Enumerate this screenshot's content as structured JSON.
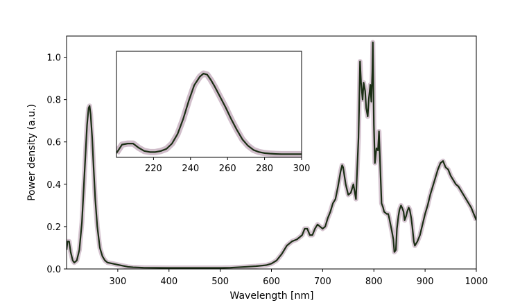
{
  "chart_data": [
    {
      "type": "line",
      "role": "main",
      "xlabel": "Wavelength [nm]",
      "ylabel": "Power density (a.u.)",
      "xlim": [
        200,
        1000
      ],
      "ylim": [
        0,
        1.1
      ],
      "xticks": [
        300,
        400,
        500,
        600,
        700,
        800,
        900,
        1000
      ],
      "yticks": [
        0.0,
        0.2,
        0.4,
        0.6,
        0.8,
        1.0
      ],
      "xtick_labels": [
        "300",
        "400",
        "500",
        "600",
        "700",
        "800",
        "900",
        "1000"
      ],
      "ytick_labels": [
        "0.0",
        "0.2",
        "0.4",
        "0.6",
        "0.8",
        "1.0"
      ],
      "grid": false,
      "line_color": "#1a2e14",
      "band_color": "#8a5a7a",
      "series": [
        {
          "x": [
            200,
            202,
            205,
            208,
            212,
            215,
            220,
            225,
            230,
            235,
            240,
            243,
            245,
            247,
            250,
            253,
            256,
            260,
            265,
            270,
            275,
            280,
            290,
            300,
            310,
            320,
            330,
            350,
            400,
            450,
            500,
            520,
            550,
            570,
            590,
            600,
            610,
            620,
            625,
            630,
            640,
            650,
            660,
            665,
            670,
            675,
            680,
            685,
            690,
            695,
            700,
            705,
            710,
            715,
            720,
            725,
            730,
            735,
            738,
            740,
            745,
            750,
            755,
            760,
            765,
            770,
            773,
            775,
            778,
            780,
            783,
            785,
            788,
            790,
            793,
            795,
            797,
            798,
            800,
            802,
            805,
            808,
            810,
            812,
            815,
            818,
            820,
            825,
            828,
            830,
            835,
            838,
            840,
            843,
            845,
            848,
            850,
            853,
            855,
            858,
            860,
            863,
            865,
            868,
            870,
            873,
            875,
            878,
            880,
            885,
            890,
            895,
            900,
            905,
            910,
            915,
            920,
            925,
            930,
            935,
            940,
            945,
            950,
            955,
            960,
            965,
            970,
            975,
            980,
            985,
            990,
            995,
            1000
          ],
          "values": [
            0.09,
            0.13,
            0.13,
            0.08,
            0.04,
            0.03,
            0.04,
            0.09,
            0.22,
            0.45,
            0.68,
            0.76,
            0.77,
            0.73,
            0.62,
            0.47,
            0.33,
            0.2,
            0.1,
            0.06,
            0.04,
            0.03,
            0.025,
            0.02,
            0.015,
            0.01,
            0.008,
            0.006,
            0.005,
            0.005,
            0.005,
            0.006,
            0.01,
            0.013,
            0.018,
            0.025,
            0.04,
            0.07,
            0.09,
            0.11,
            0.13,
            0.14,
            0.16,
            0.19,
            0.19,
            0.16,
            0.16,
            0.19,
            0.21,
            0.2,
            0.19,
            0.2,
            0.24,
            0.27,
            0.31,
            0.33,
            0.39,
            0.46,
            0.49,
            0.48,
            0.4,
            0.35,
            0.36,
            0.4,
            0.33,
            0.62,
            0.98,
            0.88,
            0.8,
            0.88,
            0.84,
            0.76,
            0.72,
            0.8,
            0.87,
            0.79,
            0.93,
            1.07,
            0.68,
            0.5,
            0.57,
            0.56,
            0.65,
            0.51,
            0.31,
            0.29,
            0.27,
            0.26,
            0.26,
            0.24,
            0.18,
            0.14,
            0.08,
            0.09,
            0.19,
            0.25,
            0.28,
            0.3,
            0.29,
            0.27,
            0.23,
            0.25,
            0.27,
            0.29,
            0.28,
            0.24,
            0.2,
            0.13,
            0.11,
            0.13,
            0.16,
            0.21,
            0.26,
            0.3,
            0.35,
            0.39,
            0.43,
            0.47,
            0.5,
            0.51,
            0.48,
            0.47,
            0.44,
            0.42,
            0.4,
            0.39,
            0.37,
            0.35,
            0.33,
            0.31,
            0.29,
            0.26,
            0.23
          ]
        }
      ]
    },
    {
      "type": "line",
      "role": "inset",
      "xlim": [
        200,
        300
      ],
      "ylim": [
        0,
        1
      ],
      "xticks": [
        220,
        240,
        260,
        280,
        300
      ],
      "xtick_labels": [
        "220",
        "240",
        "260",
        "280",
        "300"
      ],
      "grid": false,
      "series": [
        {
          "x": [
            200,
            203,
            206,
            209,
            212,
            215,
            218,
            221,
            224,
            227,
            230,
            233,
            236,
            239,
            242,
            245,
            247,
            249,
            251,
            253,
            256,
            259,
            262,
            265,
            268,
            271,
            274,
            277,
            280,
            283,
            286,
            289,
            292,
            295,
            298,
            300
          ],
          "values": [
            0.04,
            0.12,
            0.13,
            0.13,
            0.09,
            0.06,
            0.05,
            0.05,
            0.06,
            0.08,
            0.13,
            0.22,
            0.36,
            0.53,
            0.68,
            0.76,
            0.79,
            0.78,
            0.73,
            0.67,
            0.57,
            0.47,
            0.36,
            0.26,
            0.17,
            0.11,
            0.07,
            0.05,
            0.04,
            0.035,
            0.032,
            0.03,
            0.03,
            0.03,
            0.03,
            0.03
          ]
        }
      ]
    }
  ]
}
